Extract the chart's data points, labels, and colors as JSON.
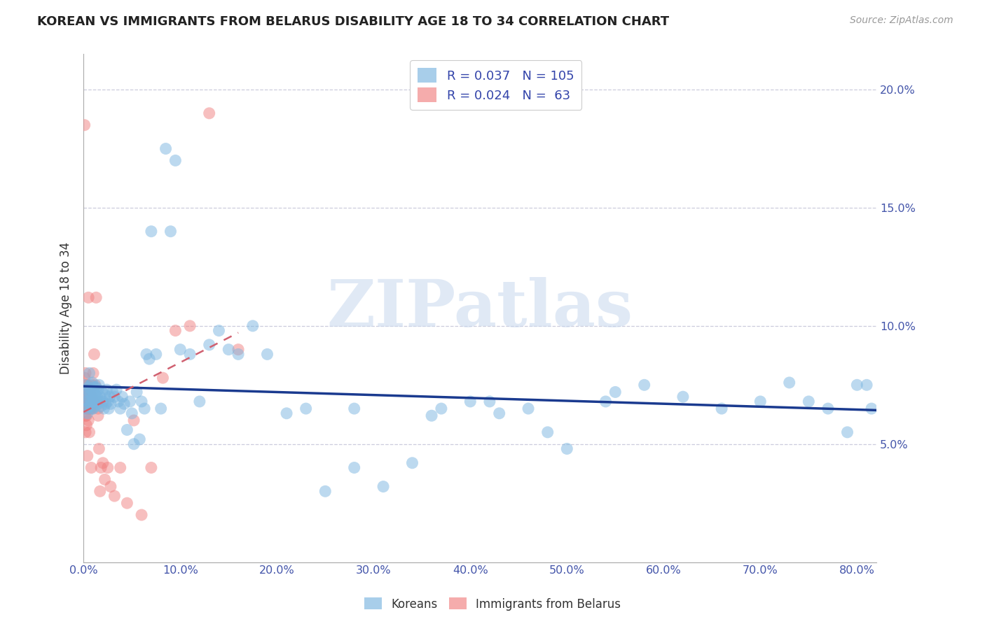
{
  "title": "KOREAN VS IMMIGRANTS FROM BELARUS DISABILITY AGE 18 TO 34 CORRELATION CHART",
  "source": "Source: ZipAtlas.com",
  "ylabel": "Disability Age 18 to 34",
  "watermark_text": "ZIPatlas",
  "xlim": [
    0.0,
    0.82
  ],
  "ylim": [
    0.0,
    0.215
  ],
  "xticks": [
    0.0,
    0.1,
    0.2,
    0.3,
    0.4,
    0.5,
    0.6,
    0.7,
    0.8
  ],
  "yticks_right": [
    0.05,
    0.1,
    0.15,
    0.2
  ],
  "ytick_labels_right": [
    "5.0%",
    "10.0%",
    "15.0%",
    "20.0%"
  ],
  "xtick_labels": [
    "0.0%",
    "10.0%",
    "20.0%",
    "30.0%",
    "40.0%",
    "50.0%",
    "60.0%",
    "70.0%",
    "80.0%"
  ],
  "korean_R": 0.037,
  "korean_N": 105,
  "belarus_R": 0.024,
  "belarus_N": 63,
  "korean_color": "#7ab5e0",
  "belarus_color": "#f08080",
  "korean_line_color": "#1a3a8f",
  "belarus_line_color": "#d06070",
  "legend_label_korean": "Koreans",
  "legend_label_belarus": "Immigrants from Belarus",
  "korean_x": [
    0.001,
    0.002,
    0.003,
    0.003,
    0.004,
    0.004,
    0.005,
    0.005,
    0.006,
    0.006,
    0.006,
    0.007,
    0.007,
    0.007,
    0.008,
    0.008,
    0.009,
    0.009,
    0.009,
    0.01,
    0.01,
    0.01,
    0.011,
    0.011,
    0.012,
    0.012,
    0.013,
    0.013,
    0.014,
    0.015,
    0.015,
    0.016,
    0.016,
    0.017,
    0.018,
    0.019,
    0.02,
    0.021,
    0.022,
    0.023,
    0.024,
    0.025,
    0.026,
    0.027,
    0.028,
    0.03,
    0.032,
    0.034,
    0.036,
    0.038,
    0.04,
    0.042,
    0.045,
    0.048,
    0.05,
    0.052,
    0.055,
    0.058,
    0.06,
    0.063,
    0.065,
    0.068,
    0.07,
    0.075,
    0.08,
    0.085,
    0.09,
    0.095,
    0.1,
    0.11,
    0.12,
    0.13,
    0.14,
    0.15,
    0.16,
    0.175,
    0.19,
    0.21,
    0.23,
    0.25,
    0.28,
    0.31,
    0.34,
    0.37,
    0.4,
    0.43,
    0.46,
    0.5,
    0.54,
    0.58,
    0.62,
    0.66,
    0.7,
    0.73,
    0.75,
    0.77,
    0.79,
    0.8,
    0.81,
    0.815,
    0.36,
    0.28,
    0.42,
    0.48,
    0.55
  ],
  "korean_y": [
    0.075,
    0.072,
    0.068,
    0.065,
    0.07,
    0.063,
    0.068,
    0.074,
    0.066,
    0.072,
    0.08,
    0.067,
    0.071,
    0.075,
    0.068,
    0.073,
    0.065,
    0.07,
    0.076,
    0.068,
    0.072,
    0.065,
    0.069,
    0.074,
    0.066,
    0.071,
    0.068,
    0.074,
    0.07,
    0.067,
    0.073,
    0.068,
    0.075,
    0.07,
    0.066,
    0.072,
    0.068,
    0.065,
    0.071,
    0.067,
    0.073,
    0.068,
    0.065,
    0.07,
    0.067,
    0.072,
    0.07,
    0.073,
    0.068,
    0.065,
    0.07,
    0.067,
    0.056,
    0.068,
    0.063,
    0.05,
    0.072,
    0.052,
    0.068,
    0.065,
    0.088,
    0.086,
    0.14,
    0.088,
    0.065,
    0.175,
    0.14,
    0.17,
    0.09,
    0.088,
    0.068,
    0.092,
    0.098,
    0.09,
    0.088,
    0.1,
    0.088,
    0.063,
    0.065,
    0.03,
    0.065,
    0.032,
    0.042,
    0.065,
    0.068,
    0.063,
    0.065,
    0.048,
    0.068,
    0.075,
    0.07,
    0.065,
    0.068,
    0.076,
    0.068,
    0.065,
    0.055,
    0.075,
    0.075,
    0.065,
    0.062,
    0.04,
    0.068,
    0.055,
    0.072
  ],
  "belarus_x": [
    0.001,
    0.001,
    0.001,
    0.001,
    0.002,
    0.002,
    0.002,
    0.002,
    0.002,
    0.002,
    0.003,
    0.003,
    0.003,
    0.003,
    0.003,
    0.004,
    0.004,
    0.004,
    0.004,
    0.005,
    0.005,
    0.005,
    0.005,
    0.005,
    0.006,
    0.006,
    0.006,
    0.006,
    0.007,
    0.007,
    0.007,
    0.007,
    0.008,
    0.008,
    0.008,
    0.009,
    0.009,
    0.01,
    0.01,
    0.011,
    0.012,
    0.013,
    0.014,
    0.015,
    0.015,
    0.016,
    0.017,
    0.018,
    0.02,
    0.022,
    0.025,
    0.028,
    0.032,
    0.038,
    0.045,
    0.052,
    0.06,
    0.07,
    0.082,
    0.095,
    0.11,
    0.13,
    0.16
  ],
  "belarus_y": [
    0.185,
    0.068,
    0.072,
    0.078,
    0.065,
    0.07,
    0.08,
    0.068,
    0.062,
    0.055,
    0.068,
    0.075,
    0.062,
    0.058,
    0.07,
    0.068,
    0.065,
    0.075,
    0.045,
    0.068,
    0.112,
    0.072,
    0.065,
    0.06,
    0.055,
    0.068,
    0.072,
    0.065,
    0.07,
    0.065,
    0.068,
    0.072,
    0.065,
    0.07,
    0.04,
    0.068,
    0.075,
    0.068,
    0.08,
    0.088,
    0.075,
    0.112,
    0.068,
    0.062,
    0.065,
    0.048,
    0.03,
    0.04,
    0.042,
    0.035,
    0.04,
    0.032,
    0.028,
    0.04,
    0.025,
    0.06,
    0.02,
    0.04,
    0.078,
    0.098,
    0.1,
    0.19,
    0.09
  ]
}
